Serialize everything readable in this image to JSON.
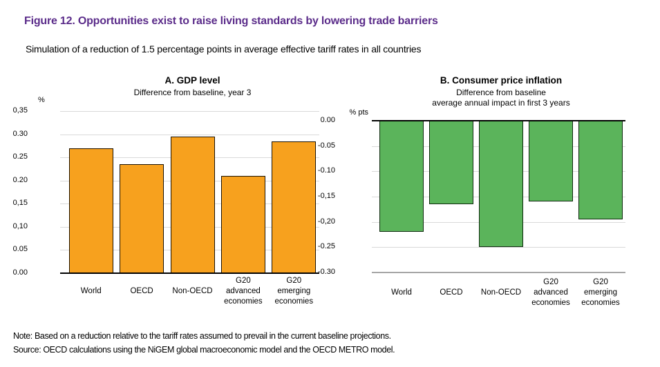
{
  "header": {
    "title": "Figure 12. Opportunities exist to raise living standards by lowering trade barriers",
    "subtitle": "Simulation of a reduction of 1.5 percentage points in average effective tariff rates in all countries",
    "title_color": "#5B2C8A"
  },
  "chart_data": [
    {
      "type": "bar",
      "panel": "A",
      "title": "A. GDP level",
      "subtitle": "Difference from baseline, year 3",
      "unit_label": "%",
      "categories": [
        "World",
        "OECD",
        "Non-OECD",
        "G20 advanced economies",
        "G20 emerging economies"
      ],
      "category_lines": [
        [
          "World"
        ],
        [
          "OECD"
        ],
        [
          "Non-OECD"
        ],
        [
          "G20",
          "advanced",
          "economies"
        ],
        [
          "G20",
          "emerging",
          "economies"
        ]
      ],
      "values": [
        0.27,
        0.235,
        0.295,
        0.21,
        0.285
      ],
      "ylim": [
        0,
        0.35
      ],
      "ytick_values": [
        0.35,
        0.3,
        0.25,
        0.2,
        0.15,
        0.1,
        0.05,
        0.0
      ],
      "ytick_labels": [
        "0,35",
        "0.30",
        "0.25",
        "0.20",
        "0,15",
        "0,10",
        "0.05",
        "0.00"
      ],
      "grid": "on",
      "legend": "none",
      "bar_color": "#F7A11E",
      "bar_border_color": "#1A1000",
      "grid_color": "#D9D9D9",
      "zero_line_color": "#000000"
    },
    {
      "type": "bar",
      "panel": "B",
      "title": "B. Consumer price inflation",
      "subtitle": "Difference from baseline\naverage annual impact in first 3 years",
      "unit_label": "% pts",
      "categories": [
        "World",
        "OECD",
        "Non-OECD",
        "G20 advanced economies",
        "G20 emerging economies"
      ],
      "category_lines": [
        [
          "World"
        ],
        [
          "OECD"
        ],
        [
          "Non-OECD"
        ],
        [
          "G20",
          "advanced",
          "economies"
        ],
        [
          "G20",
          "emerging",
          "economies"
        ]
      ],
      "values": [
        -0.22,
        -0.165,
        -0.25,
        -0.16,
        -0.195
      ],
      "ylim": [
        -0.3,
        0
      ],
      "ytick_values": [
        0.0,
        -0.05,
        -0.1,
        -0.15,
        -0.2,
        -0.25,
        -0.3
      ],
      "ytick_labels": [
        "0.00",
        "-0.05",
        "-0.10",
        "-0,15",
        "-0,20",
        "-0.25",
        "-0.30"
      ],
      "grid": "on",
      "legend": "none",
      "bar_color": "#5BB45B",
      "bar_border_color": "#0E2A0E",
      "grid_color": "#D9D9D9",
      "zero_line_color": "#000000",
      "outer_axis_color": "#A6A6A6"
    }
  ],
  "footer": {
    "note": "Note: Based on a reduction relative to the tariff rates assumed to prevail in the current baseline projections.",
    "source": "Source: OECD calculations using the NiGEM global macroeconomic model and the OECD METRO model."
  }
}
